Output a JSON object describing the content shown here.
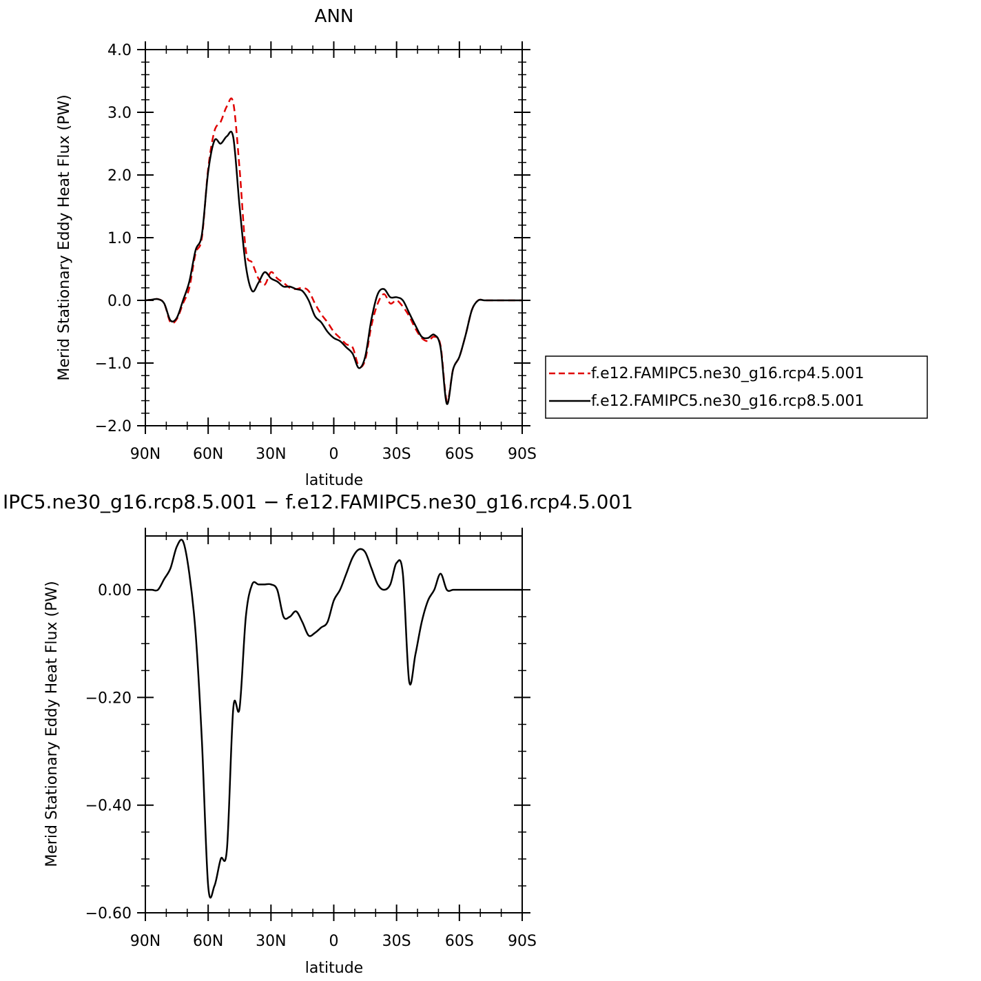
{
  "chart_data": [
    {
      "type": "line",
      "title": "ANN",
      "xlabel": "latitude",
      "ylabel": "Merid Stationary Eddy Heat Flux (PW)",
      "xlim": [
        90,
        -90
      ],
      "ylim": [
        -2.0,
        4.0
      ],
      "x_ticks": [
        90,
        60,
        30,
        0,
        -30,
        -60,
        -90
      ],
      "x_tick_labels": [
        "90N",
        "60N",
        "30N",
        "0",
        "30S",
        "60S",
        "90S"
      ],
      "y_ticks": [
        -2.0,
        -1.0,
        0.0,
        1.0,
        2.0,
        3.0,
        4.0
      ],
      "y_tick_labels": [
        "−2.0",
        "−1.0",
        "0.0",
        "1.0",
        "2.0",
        "3.0",
        "4.0"
      ],
      "legend_position": "right",
      "series": [
        {
          "name": "f.e12.FAMIPC5.ne30_g16.rcp4.5.001",
          "color": "#e00000",
          "dash": "dashed",
          "x": [
            90,
            87,
            84,
            81,
            78,
            75,
            72,
            69,
            66,
            63,
            60,
            57,
            54,
            51,
            48,
            45,
            42,
            39,
            36,
            33,
            30,
            27,
            24,
            21,
            18,
            15,
            12,
            9,
            6,
            3,
            0,
            -3,
            -6,
            -9,
            -12,
            -15,
            -18,
            -21,
            -24,
            -27,
            -30,
            -33,
            -36,
            -39,
            -42,
            -45,
            -48,
            -51,
            -54,
            -57,
            -60,
            -63,
            -66,
            -69,
            -72,
            -75,
            -78,
            -81,
            -84,
            -87,
            -90
          ],
          "values": [
            0.0,
            0.01,
            0.02,
            -0.05,
            -0.35,
            -0.3,
            -0.05,
            0.2,
            0.75,
            1.0,
            2.1,
            2.7,
            2.85,
            3.1,
            3.15,
            2.1,
            0.8,
            0.6,
            0.35,
            0.25,
            0.45,
            0.35,
            0.28,
            0.2,
            0.18,
            0.2,
            0.15,
            -0.05,
            -0.22,
            -0.35,
            -0.5,
            -0.6,
            -0.7,
            -0.75,
            -1.05,
            -0.95,
            -0.4,
            -0.05,
            0.1,
            -0.05,
            0.0,
            -0.1,
            -0.25,
            -0.45,
            -0.6,
            -0.65,
            -0.58,
            -0.72,
            -1.6,
            -1.1,
            -0.9,
            -0.55,
            -0.15,
            0.0,
            0.0,
            0.0,
            0.0,
            0.0,
            0.0,
            0.0,
            0.0
          ]
        },
        {
          "name": "f.e12.FAMIPC5.ne30_g16.rcp8.5.001",
          "color": "#000000",
          "dash": "solid",
          "x": [
            90,
            87,
            84,
            81,
            78,
            75,
            72,
            69,
            66,
            63,
            60,
            57,
            54,
            51,
            48,
            45,
            42,
            39,
            36,
            33,
            30,
            27,
            24,
            21,
            18,
            15,
            12,
            9,
            6,
            3,
            0,
            -3,
            -6,
            -9,
            -12,
            -15,
            -18,
            -21,
            -24,
            -27,
            -30,
            -33,
            -36,
            -39,
            -42,
            -45,
            -48,
            -51,
            -54,
            -57,
            -60,
            -63,
            -66,
            -69,
            -72,
            -75,
            -78,
            -81,
            -84,
            -87,
            -90
          ],
          "values": [
            0.0,
            0.01,
            0.02,
            -0.05,
            -0.32,
            -0.28,
            0.0,
            0.3,
            0.8,
            1.05,
            2.05,
            2.55,
            2.5,
            2.62,
            2.6,
            1.5,
            0.55,
            0.15,
            0.28,
            0.45,
            0.35,
            0.3,
            0.22,
            0.22,
            0.18,
            0.15,
            0.0,
            -0.25,
            -0.35,
            -0.5,
            -0.6,
            -0.65,
            -0.75,
            -0.85,
            -1.08,
            -0.9,
            -0.3,
            0.1,
            0.18,
            0.05,
            0.05,
            0.0,
            -0.2,
            -0.4,
            -0.58,
            -0.6,
            -0.55,
            -0.75,
            -1.65,
            -1.1,
            -0.9,
            -0.55,
            -0.15,
            0.0,
            0.0,
            0.0,
            0.0,
            0.0,
            0.0,
            0.0,
            0.0
          ]
        }
      ]
    },
    {
      "type": "line",
      "title": "IPC5.ne30_g16.rcp8.5.001 − f.e12.FAMIPC5.ne30_g16.rcp4.5.001",
      "xlabel": "latitude",
      "ylabel": "Merid Stationary Eddy Heat Flux (PW)",
      "xlim": [
        90,
        -90
      ],
      "ylim": [
        -0.6,
        0.1
      ],
      "x_ticks": [
        90,
        60,
        30,
        0,
        -30,
        -60,
        -90
      ],
      "x_tick_labels": [
        "90N",
        "60N",
        "30N",
        "0",
        "30S",
        "60S",
        "90S"
      ],
      "y_ticks": [
        -0.6,
        -0.4,
        -0.2,
        0.0
      ],
      "y_tick_labels": [
        "−0.60",
        "−0.40",
        "−0.20",
        "0.00"
      ],
      "series": [
        {
          "name": "",
          "color": "#000000",
          "dash": "solid",
          "x": [
            90,
            87,
            84,
            81,
            78,
            75,
            72,
            69,
            66,
            63,
            60,
            57,
            54,
            51,
            48,
            45,
            42,
            39,
            36,
            33,
            30,
            27,
            24,
            21,
            18,
            15,
            12,
            9,
            6,
            3,
            0,
            -3,
            -6,
            -9,
            -12,
            -15,
            -18,
            -21,
            -24,
            -27,
            -30,
            -33,
            -36,
            -39,
            -42,
            -45,
            -48,
            -51,
            -54,
            -57,
            -60,
            -63,
            -66,
            -69,
            -72,
            -75,
            -78,
            -81,
            -84,
            -87,
            -90
          ],
          "values": [
            0.0,
            0.0,
            0.0,
            0.02,
            0.04,
            0.08,
            0.09,
            0.03,
            -0.08,
            -0.28,
            -0.55,
            -0.55,
            -0.5,
            -0.48,
            -0.22,
            -0.22,
            -0.05,
            0.01,
            0.01,
            0.01,
            0.01,
            0.0,
            -0.05,
            -0.05,
            -0.04,
            -0.06,
            -0.085,
            -0.08,
            -0.07,
            -0.06,
            -0.02,
            0.0,
            0.03,
            0.06,
            0.075,
            0.07,
            0.04,
            0.01,
            0.0,
            0.01,
            0.05,
            0.03,
            -0.17,
            -0.12,
            -0.06,
            -0.02,
            0.0,
            0.03,
            0.0,
            0.0,
            0.0,
            0.0,
            0.0,
            0.0,
            0.0,
            0.0,
            0.0,
            0.0,
            0.0,
            0.0,
            0.0
          ]
        }
      ]
    }
  ]
}
